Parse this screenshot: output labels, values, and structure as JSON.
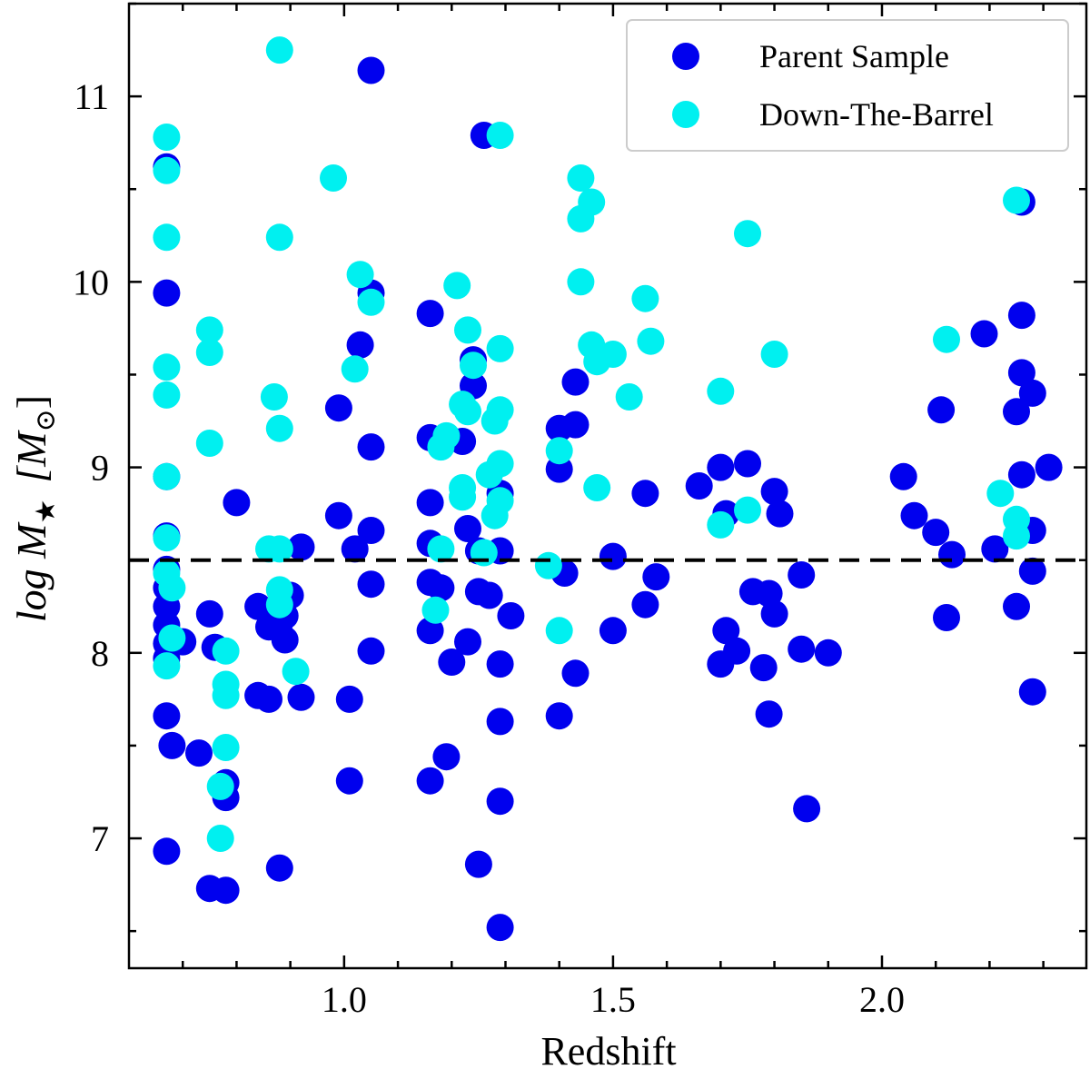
{
  "chart_data": {
    "type": "scatter",
    "title": "",
    "xlabel": "Redshift",
    "ylabel": "log M★ [M⊙]",
    "ylabel_main": "log M",
    "ylabel_sub": "★",
    "ylabel_unit_open": "[M",
    "ylabel_unit_sub": "⊙",
    "ylabel_unit_close": "]",
    "xlim": [
      0.6,
      2.38
    ],
    "ylim": [
      6.3,
      11.5
    ],
    "xticks": [
      1.0,
      1.5,
      2.0
    ],
    "xtick_labels": [
      "1.0",
      "1.5",
      "2.0"
    ],
    "yticks": [
      7,
      8,
      9,
      10,
      11
    ],
    "ytick_labels": [
      "7",
      "8",
      "9",
      "10",
      "11"
    ],
    "legend_position": "top-right",
    "reference_line": {
      "y": 8.5,
      "style": "dashed",
      "color": "#000000"
    },
    "series": [
      {
        "name": "Parent Sample",
        "color": "#0000ee",
        "points": [
          [
            0.67,
            10.62
          ],
          [
            0.67,
            9.94
          ],
          [
            0.67,
            8.95
          ],
          [
            0.67,
            8.63
          ],
          [
            0.67,
            8.45
          ],
          [
            0.67,
            8.35
          ],
          [
            0.67,
            8.25
          ],
          [
            0.67,
            8.15
          ],
          [
            0.67,
            8.05
          ],
          [
            0.67,
            7.97
          ],
          [
            0.67,
            7.66
          ],
          [
            0.68,
            7.5
          ],
          [
            0.67,
            6.93
          ],
          [
            0.7,
            8.06
          ],
          [
            0.73,
            7.46
          ],
          [
            0.75,
            8.21
          ],
          [
            0.76,
            8.03
          ],
          [
            0.75,
            6.73
          ],
          [
            0.78,
            6.72
          ],
          [
            0.78,
            7.3
          ],
          [
            0.78,
            7.22
          ],
          [
            0.8,
            8.81
          ],
          [
            0.84,
            8.25
          ],
          [
            0.84,
            7.77
          ],
          [
            0.86,
            8.14
          ],
          [
            0.86,
            7.75
          ],
          [
            0.88,
            8.16
          ],
          [
            0.89,
            8.07
          ],
          [
            0.89,
            8.2
          ],
          [
            0.9,
            8.31
          ],
          [
            0.92,
            8.57
          ],
          [
            0.92,
            7.76
          ],
          [
            0.88,
            6.84
          ],
          [
            0.99,
            9.32
          ],
          [
            0.99,
            8.74
          ],
          [
            1.01,
            7.75
          ],
          [
            1.01,
            7.31
          ],
          [
            1.02,
            8.56
          ],
          [
            1.03,
            9.66
          ],
          [
            1.05,
            9.94
          ],
          [
            1.05,
            11.14
          ],
          [
            1.05,
            9.11
          ],
          [
            1.05,
            8.66
          ],
          [
            1.05,
            8.37
          ],
          [
            1.05,
            8.01
          ],
          [
            1.16,
            9.83
          ],
          [
            1.16,
            9.16
          ],
          [
            1.16,
            8.81
          ],
          [
            1.16,
            8.59
          ],
          [
            1.16,
            8.38
          ],
          [
            1.16,
            8.12
          ],
          [
            1.16,
            7.31
          ],
          [
            1.18,
            8.35
          ],
          [
            1.19,
            7.44
          ],
          [
            1.2,
            7.95
          ],
          [
            1.22,
            9.14
          ],
          [
            1.23,
            8.67
          ],
          [
            1.23,
            8.06
          ],
          [
            1.24,
            9.58
          ],
          [
            1.24,
            9.44
          ],
          [
            1.25,
            8.55
          ],
          [
            1.25,
            8.33
          ],
          [
            1.25,
            6.86
          ],
          [
            1.26,
            10.79
          ],
          [
            1.27,
            8.31
          ],
          [
            1.29,
            8.86
          ],
          [
            1.29,
            8.55
          ],
          [
            1.29,
            7.94
          ],
          [
            1.29,
            7.63
          ],
          [
            1.29,
            7.2
          ],
          [
            1.29,
            6.52
          ],
          [
            1.31,
            8.2
          ],
          [
            1.4,
            9.21
          ],
          [
            1.4,
            8.99
          ],
          [
            1.41,
            8.43
          ],
          [
            1.4,
            7.66
          ],
          [
            1.43,
            9.46
          ],
          [
            1.43,
            9.23
          ],
          [
            1.43,
            7.89
          ],
          [
            1.5,
            8.52
          ],
          [
            1.5,
            8.12
          ],
          [
            1.56,
            8.86
          ],
          [
            1.56,
            8.26
          ],
          [
            1.58,
            8.41
          ],
          [
            1.66,
            8.9
          ],
          [
            1.7,
            9.0
          ],
          [
            1.7,
            7.94
          ],
          [
            1.71,
            8.75
          ],
          [
            1.71,
            8.12
          ],
          [
            1.73,
            8.01
          ],
          [
            1.75,
            9.02
          ],
          [
            1.76,
            8.33
          ],
          [
            1.78,
            7.92
          ],
          [
            1.79,
            8.32
          ],
          [
            1.8,
            8.87
          ],
          [
            1.81,
            8.75
          ],
          [
            1.8,
            8.21
          ],
          [
            1.79,
            7.67
          ],
          [
            1.85,
            8.42
          ],
          [
            1.85,
            8.02
          ],
          [
            1.86,
            7.16
          ],
          [
            1.9,
            8.0
          ],
          [
            2.04,
            8.95
          ],
          [
            2.06,
            8.74
          ],
          [
            2.1,
            8.65
          ],
          [
            2.11,
            9.31
          ],
          [
            2.12,
            8.19
          ],
          [
            2.13,
            8.53
          ],
          [
            2.19,
            9.72
          ],
          [
            2.21,
            8.56
          ],
          [
            2.26,
            10.43
          ],
          [
            2.26,
            9.82
          ],
          [
            2.26,
            9.51
          ],
          [
            2.25,
            9.3
          ],
          [
            2.26,
            8.96
          ],
          [
            2.25,
            8.25
          ],
          [
            2.28,
            9.4
          ],
          [
            2.28,
            8.66
          ],
          [
            2.28,
            8.44
          ],
          [
            2.28,
            7.79
          ],
          [
            2.31,
            9.0
          ]
        ]
      },
      {
        "name": "Down-The-Barrel",
        "color": "#00f0f0",
        "points": [
          [
            0.67,
            10.78
          ],
          [
            0.67,
            10.6
          ],
          [
            0.67,
            10.24
          ],
          [
            0.67,
            9.54
          ],
          [
            0.67,
            9.39
          ],
          [
            0.67,
            8.95
          ],
          [
            0.67,
            8.62
          ],
          [
            0.67,
            8.43
          ],
          [
            0.68,
            8.35
          ],
          [
            0.68,
            8.08
          ],
          [
            0.67,
            7.93
          ],
          [
            0.75,
            9.74
          ],
          [
            0.75,
            9.62
          ],
          [
            0.75,
            9.13
          ],
          [
            0.78,
            8.01
          ],
          [
            0.78,
            7.83
          ],
          [
            0.78,
            7.77
          ],
          [
            0.78,
            7.49
          ],
          [
            0.77,
            7.28
          ],
          [
            0.77,
            7.0
          ],
          [
            0.86,
            8.56
          ],
          [
            0.88,
            11.25
          ],
          [
            0.88,
            10.24
          ],
          [
            0.87,
            9.38
          ],
          [
            0.88,
            9.21
          ],
          [
            0.88,
            8.56
          ],
          [
            0.88,
            8.34
          ],
          [
            0.88,
            8.26
          ],
          [
            0.91,
            7.9
          ],
          [
            0.98,
            10.56
          ],
          [
            1.03,
            10.04
          ],
          [
            1.05,
            9.89
          ],
          [
            1.02,
            9.53
          ],
          [
            1.21,
            9.98
          ],
          [
            1.23,
            9.74
          ],
          [
            1.22,
            9.34
          ],
          [
            1.23,
            9.3
          ],
          [
            1.19,
            9.17
          ],
          [
            1.18,
            9.11
          ],
          [
            1.22,
            8.89
          ],
          [
            1.22,
            8.84
          ],
          [
            1.18,
            8.56
          ],
          [
            1.17,
            8.23
          ],
          [
            1.29,
            10.79
          ],
          [
            1.24,
            9.55
          ],
          [
            1.29,
            9.64
          ],
          [
            1.29,
            9.31
          ],
          [
            1.28,
            9.25
          ],
          [
            1.29,
            9.02
          ],
          [
            1.27,
            8.96
          ],
          [
            1.29,
            8.82
          ],
          [
            1.28,
            8.74
          ],
          [
            1.26,
            8.54
          ],
          [
            1.38,
            8.47
          ],
          [
            1.4,
            9.09
          ],
          [
            1.4,
            8.12
          ],
          [
            1.44,
            10.56
          ],
          [
            1.44,
            10.34
          ],
          [
            1.46,
            10.43
          ],
          [
            1.44,
            10.0
          ],
          [
            1.46,
            9.66
          ],
          [
            1.47,
            9.57
          ],
          [
            1.5,
            9.61
          ],
          [
            1.53,
            9.38
          ],
          [
            1.47,
            8.89
          ],
          [
            1.56,
            9.91
          ],
          [
            1.57,
            9.68
          ],
          [
            1.7,
            9.41
          ],
          [
            1.7,
            8.69
          ],
          [
            1.75,
            10.26
          ],
          [
            1.75,
            8.77
          ],
          [
            1.8,
            9.61
          ],
          [
            2.12,
            9.69
          ],
          [
            2.22,
            8.86
          ],
          [
            2.25,
            10.44
          ],
          [
            2.25,
            8.72
          ],
          [
            2.25,
            8.63
          ]
        ]
      }
    ]
  }
}
